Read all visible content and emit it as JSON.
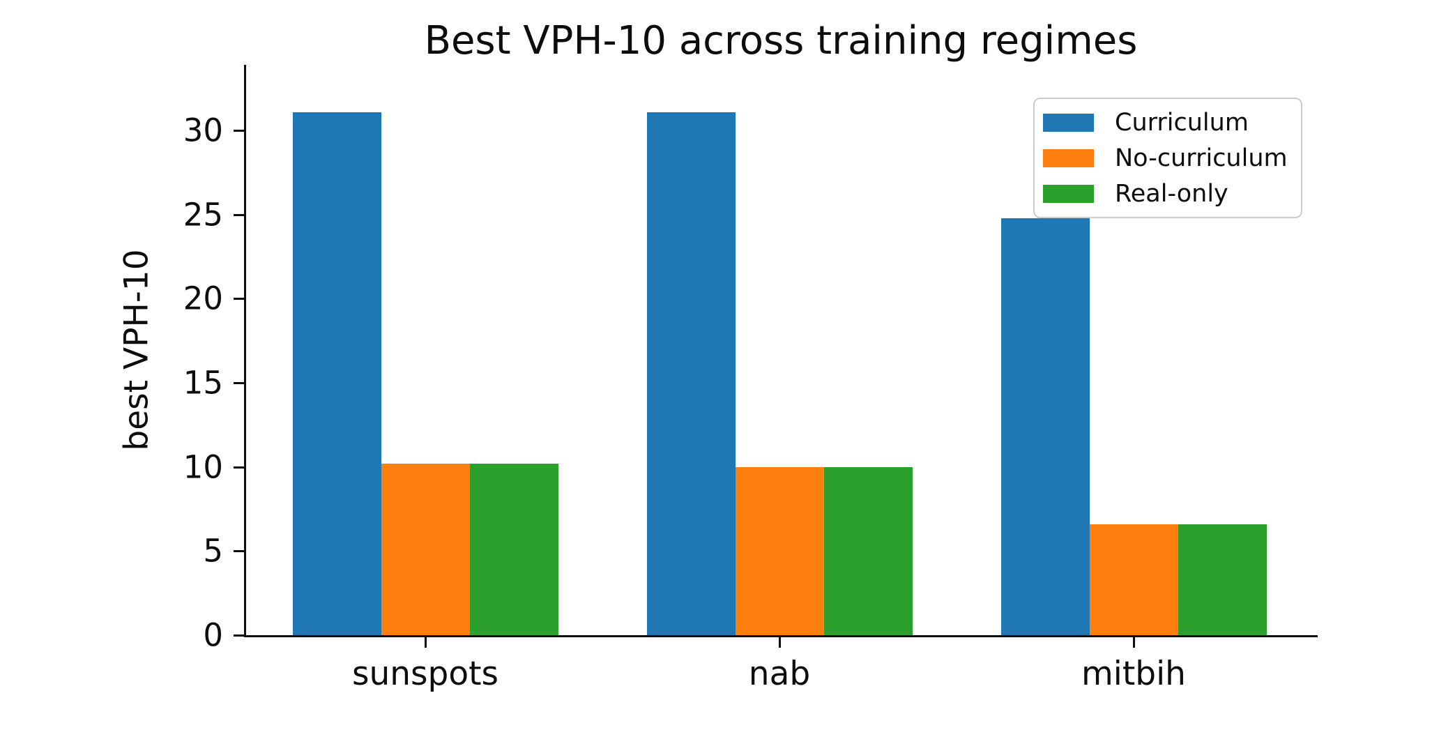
{
  "chart_data": {
    "type": "bar",
    "title": "Best VPH-10 across training regimes",
    "xlabel": "",
    "ylabel": "best VPH-10",
    "categories": [
      "sunspots",
      "nab",
      "mitbih"
    ],
    "series": [
      {
        "name": "Curriculum",
        "color": "#1f77b4",
        "values": [
          31.1,
          31.1,
          24.8
        ]
      },
      {
        "name": "No-curriculum",
        "color": "#ff7f0e",
        "values": [
          10.2,
          10.0,
          6.6
        ]
      },
      {
        "name": "Real-only",
        "color": "#2ca02c",
        "values": [
          10.2,
          10.0,
          6.6
        ]
      }
    ],
    "y_ticks": [
      0,
      5,
      10,
      15,
      20,
      25,
      30
    ],
    "ylim": [
      0,
      33.9
    ],
    "grid": false,
    "legend_position": "upper right",
    "spines": [
      "left",
      "bottom"
    ]
  }
}
